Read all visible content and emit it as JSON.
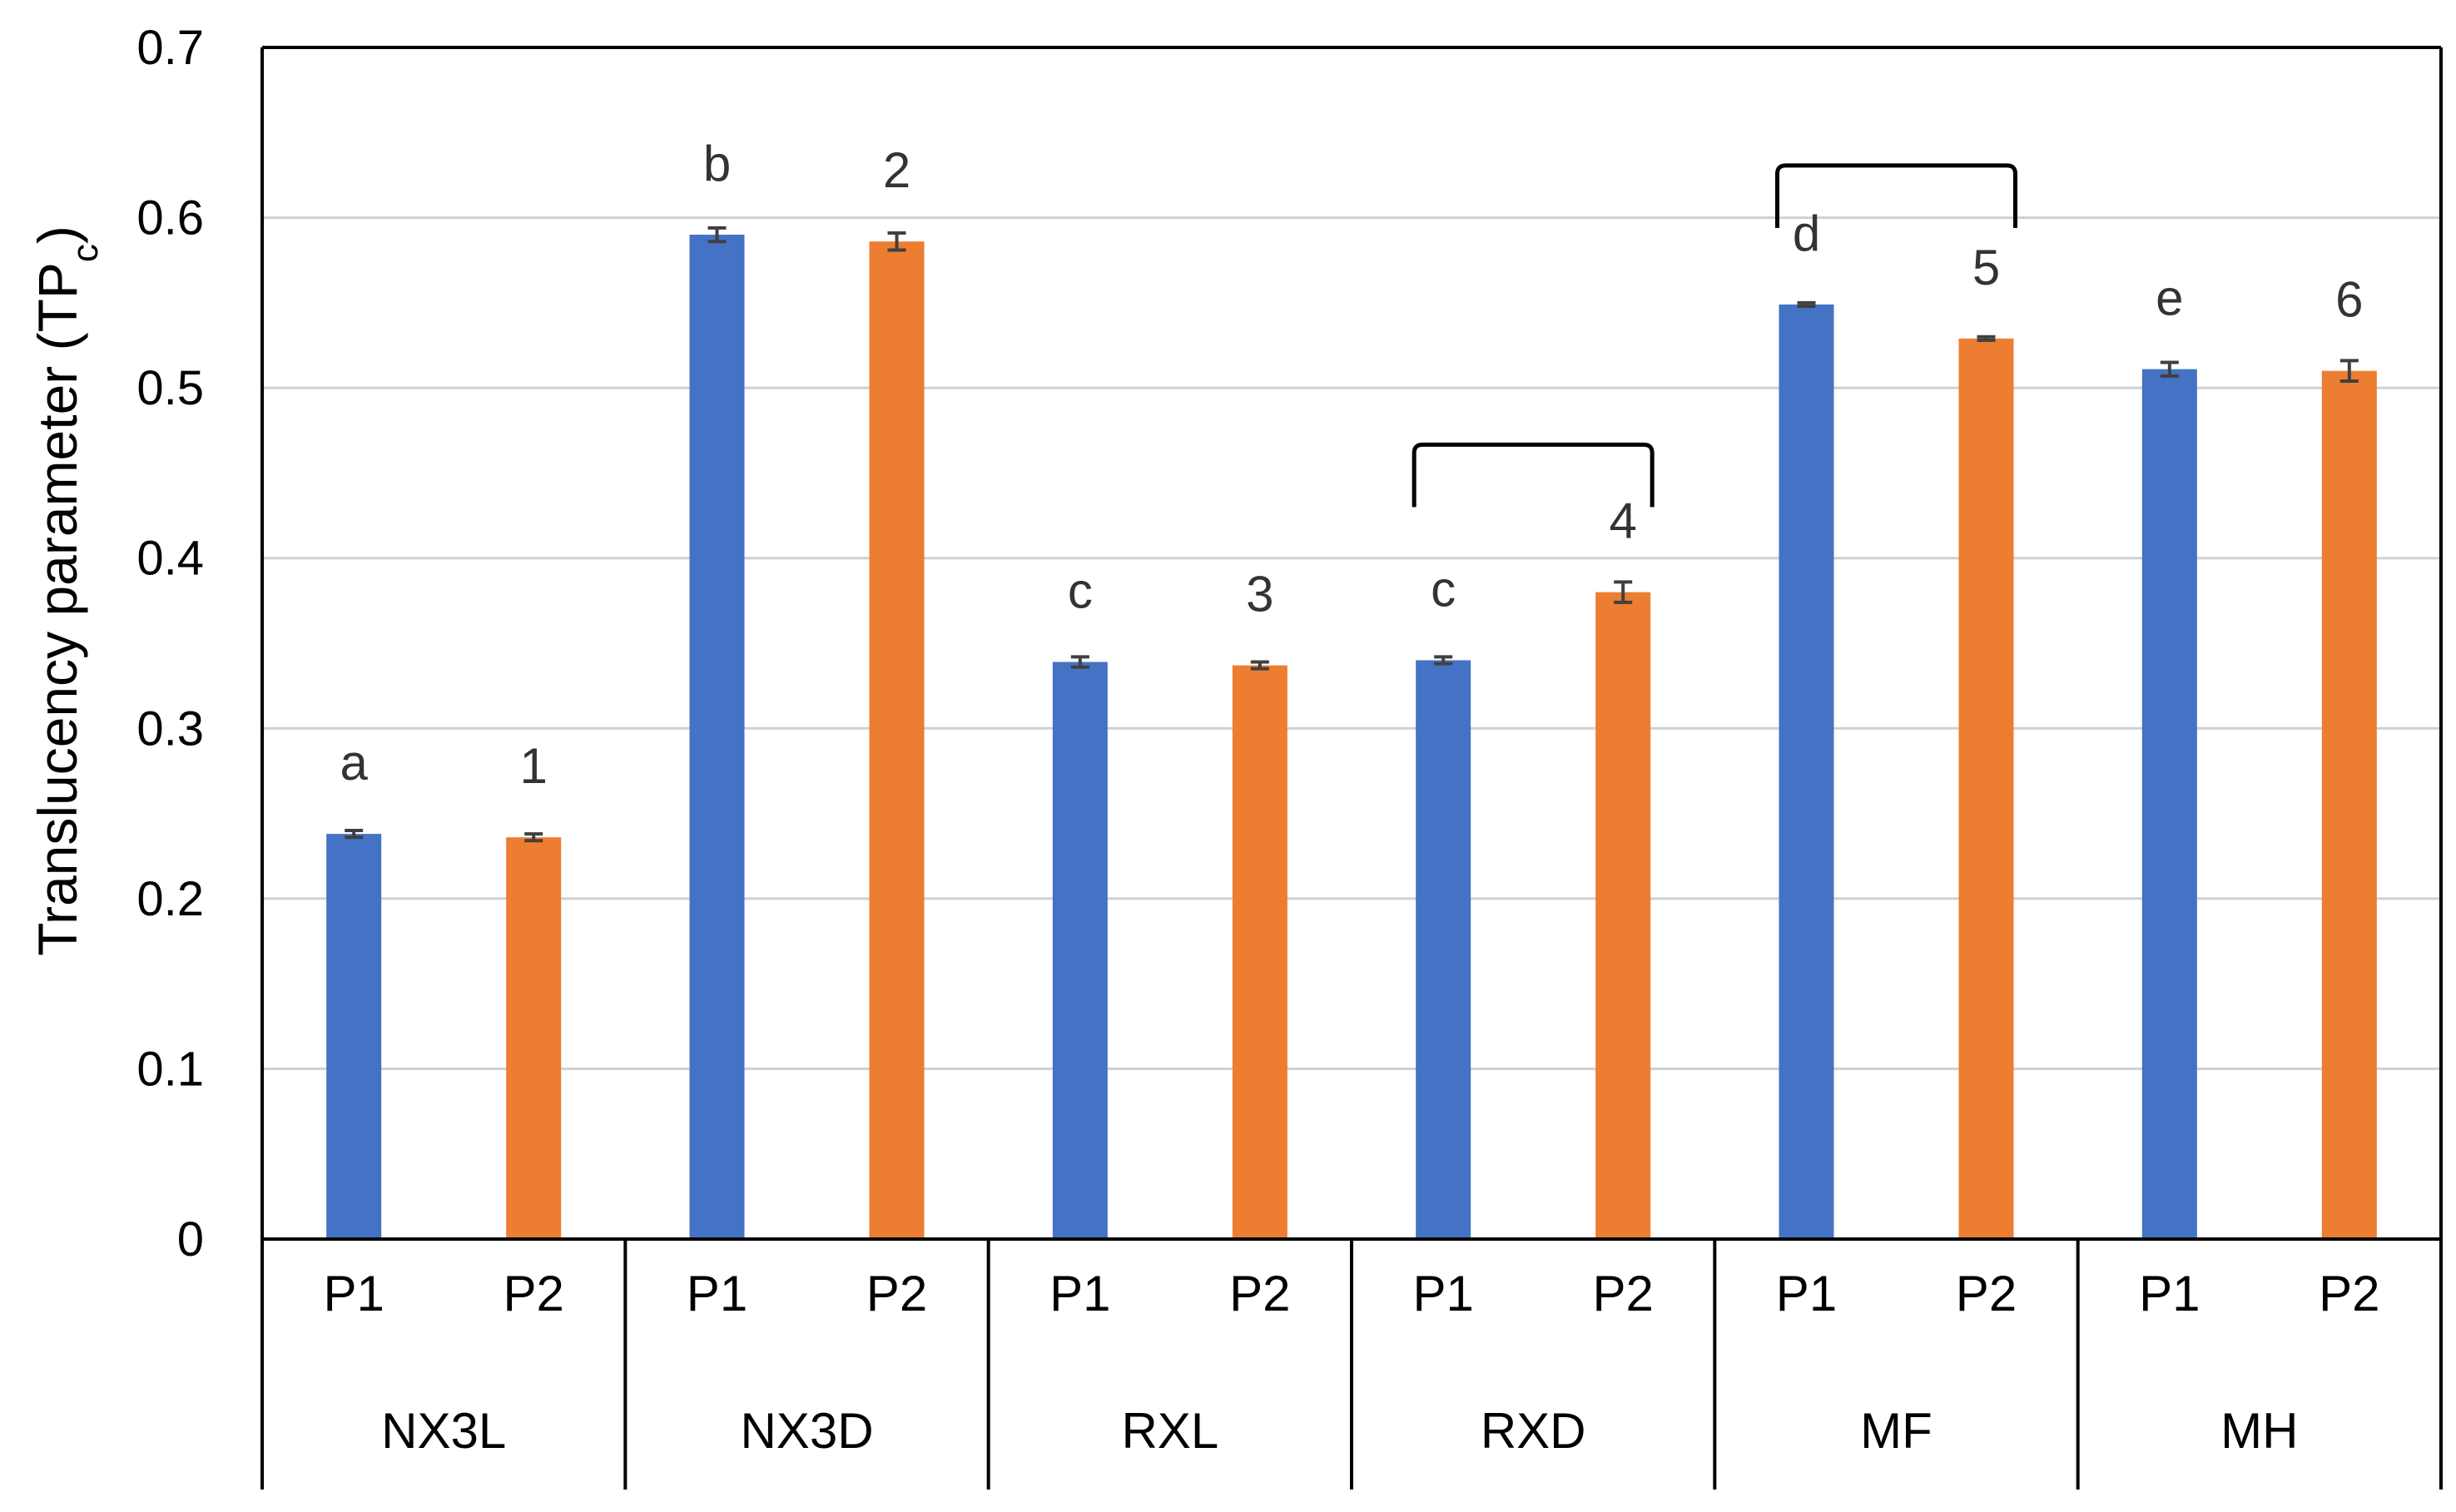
{
  "chart_data": {
    "type": "bar",
    "title": "",
    "ylabel": "Translucency parameter (TP",
    "ylabel_sub": "c",
    "ylabel_close": ")",
    "ylim": [
      0,
      0.7
    ],
    "yticks": [
      0,
      0.1,
      0.2,
      0.3,
      0.4,
      0.5,
      0.6,
      0.7
    ],
    "ytick_labels": [
      "0",
      "0.1",
      "0.2",
      "0.3",
      "0.4",
      "0.5",
      "0.6",
      "0.7"
    ],
    "grid": true,
    "legend": "none",
    "groups": [
      "NX3L",
      "NX3D",
      "RXL",
      "RXD",
      "MF",
      "MH"
    ],
    "sub_categories": [
      "P1",
      "P2"
    ],
    "series": [
      {
        "name": "P1",
        "color": "#4472c4",
        "values": [
          0.238,
          0.59,
          0.339,
          0.34,
          0.549,
          0.511
        ],
        "errors": [
          0.002,
          0.004,
          0.003,
          0.002,
          0.001,
          0.004
        ],
        "labels": [
          "a",
          "b",
          "c",
          "c",
          "d",
          "e"
        ]
      },
      {
        "name": "P2",
        "color": "#ed7d31",
        "values": [
          0.236,
          0.586,
          0.337,
          0.38,
          0.529,
          0.51
        ],
        "errors": [
          0.002,
          0.005,
          0.002,
          0.006,
          0.001,
          0.006
        ],
        "labels": [
          "1",
          "2",
          "3",
          "4",
          "5",
          "6"
        ]
      }
    ],
    "brackets": [
      "RXD",
      "MF"
    ]
  }
}
